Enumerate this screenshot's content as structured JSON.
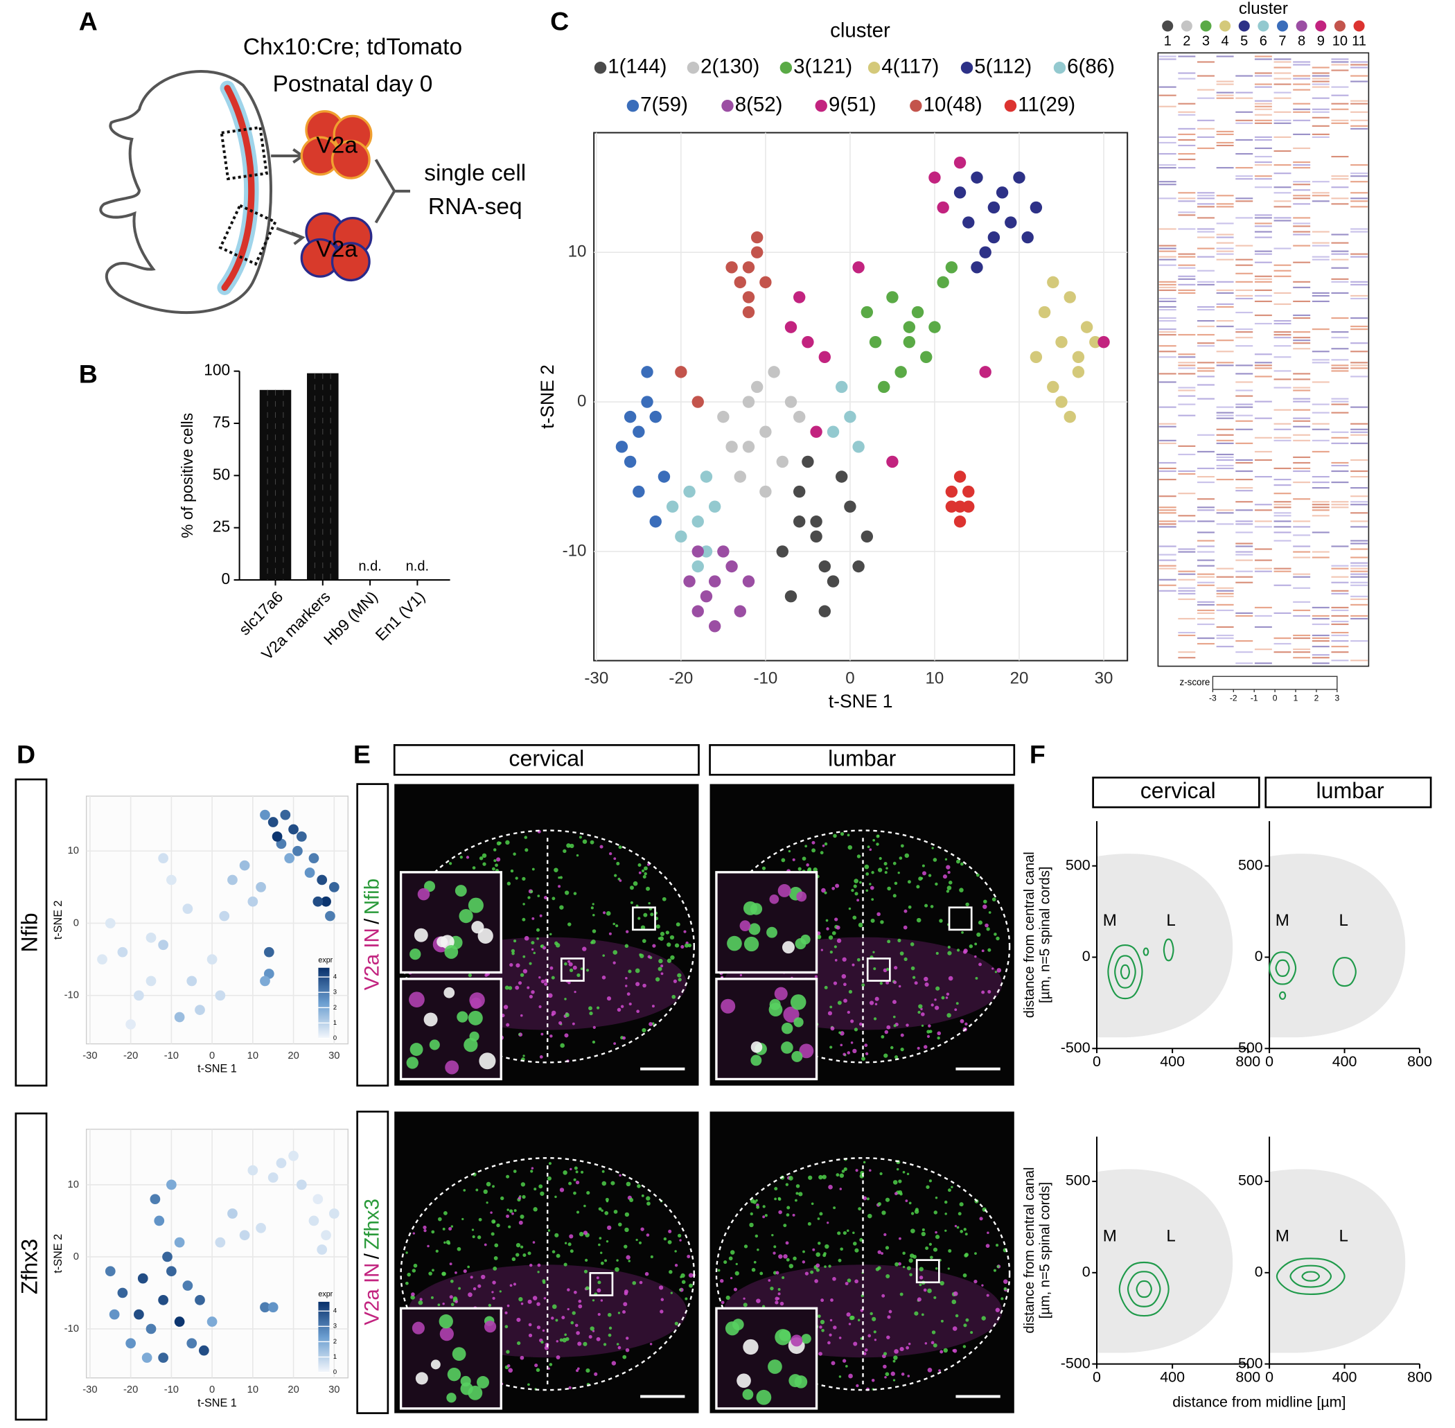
{
  "panel_labels": [
    "A",
    "B",
    "C",
    "D",
    "E",
    "F"
  ],
  "schematic": {
    "title_lines": [
      "Chx10:Cre; tdTomato",
      "Postnatal day 0"
    ],
    "cell_labels": [
      "V2a",
      "V2a"
    ],
    "result_lines": [
      "single cell",
      "RNA-seq"
    ]
  },
  "panel_e": {
    "columns": [
      "cervical",
      "lumbar"
    ],
    "channel": "V2a IN",
    "separator": "/",
    "markers": [
      "Nfib",
      "Zfhx3"
    ]
  },
  "chart_data": [
    {
      "type": "bar",
      "categories": [
        "slc17a6",
        "V2a markers",
        "Hb9 (MN)",
        "En1 (V1)"
      ],
      "values": [
        91,
        99,
        null,
        null
      ],
      "value_labels": [
        null,
        null,
        "n.d.",
        "n.d."
      ],
      "y_label": "% of positive cells",
      "ylim": [
        0,
        100
      ],
      "yticks": [
        0,
        25,
        50,
        75,
        100
      ],
      "color": "#0d0d0d"
    },
    {
      "type": "scatter",
      "legend_title": "cluster",
      "x_label": "t-SNE 1",
      "y_label": "t-SNE 2",
      "xlim": [
        -30.3,
        32.8
      ],
      "ylim": [
        -17.3,
        18
      ],
      "xticks": [
        -30,
        -20,
        -10,
        0,
        10,
        20,
        30
      ],
      "yticks": [
        -10,
        0,
        10
      ],
      "grid": true,
      "series": [
        {
          "name": "1(144)",
          "color": "#4a4a4a",
          "x": [
            -4,
            -6,
            -2,
            -8,
            0,
            -3,
            -5,
            1,
            -7,
            -1,
            -4,
            2,
            -6,
            -3
          ],
          "y": [
            -9,
            -6,
            -12,
            -10,
            -7,
            -14,
            -4,
            -11,
            -13,
            -5,
            -8,
            -9,
            -8,
            -11
          ]
        },
        {
          "name": "2(130)",
          "color": "#c4c4c4",
          "x": [
            -10,
            -12,
            -8,
            -14,
            -11,
            -9,
            -6,
            -13,
            -7,
            -10,
            -15,
            -12
          ],
          "y": [
            -2,
            0,
            -4,
            -3,
            1,
            2,
            -1,
            -5,
            0,
            -6,
            -1,
            -3
          ]
        },
        {
          "name": "3(121)",
          "color": "#5aaa46",
          "x": [
            7,
            5,
            9,
            3,
            11,
            6,
            8,
            4,
            10,
            12,
            2,
            7
          ],
          "y": [
            5,
            7,
            3,
            4,
            8,
            2,
            6,
            1,
            5,
            9,
            6,
            4
          ]
        },
        {
          "name": "4(117)",
          "color": "#d4c97a",
          "x": [
            25,
            23,
            27,
            24,
            26,
            28,
            22,
            25,
            27,
            24,
            29,
            26
          ],
          "y": [
            4,
            6,
            2,
            1,
            7,
            5,
            3,
            0,
            3,
            8,
            4,
            -1
          ]
        },
        {
          "name": "5(112)",
          "color": "#2d3187",
          "x": [
            17,
            15,
            19,
            13,
            21,
            16,
            18,
            14,
            20,
            17,
            22,
            15
          ],
          "y": [
            13,
            15,
            12,
            14,
            11,
            10,
            14,
            12,
            15,
            11,
            13,
            9
          ]
        },
        {
          "name": "6(86)",
          "color": "#93c9cf",
          "x": [
            -18,
            -19,
            -17,
            -20,
            -16,
            -18,
            -21,
            -17,
            0,
            -1,
            1,
            -2
          ],
          "y": [
            -8,
            -6,
            -10,
            -9,
            -7,
            -11,
            -7,
            -5,
            -1,
            1,
            -3,
            -2
          ]
        },
        {
          "name": "7(59)",
          "color": "#3a6dba",
          "x": [
            -25,
            -24,
            -26,
            -23,
            -25,
            -27,
            -24,
            -22,
            -26,
            -23
          ],
          "y": [
            -2,
            0,
            -4,
            -1,
            -6,
            -3,
            2,
            -5,
            -1,
            -8
          ]
        },
        {
          "name": "8(52)",
          "color": "#9b4ea3",
          "x": [
            -16,
            -18,
            -14,
            -17,
            -19,
            -15,
            -13,
            -16,
            -18,
            -12
          ],
          "y": [
            -12,
            -14,
            -11,
            -13,
            -12,
            -10,
            -14,
            -15,
            -10,
            -12
          ]
        },
        {
          "name": "9(51)",
          "color": "#c2237f",
          "x": [
            10,
            11,
            -7,
            -5,
            5,
            30,
            16,
            -6,
            -3,
            13,
            1,
            -4
          ],
          "y": [
            15,
            13,
            5,
            4,
            -4,
            4,
            2,
            7,
            3,
            16,
            9,
            -2
          ]
        },
        {
          "name": "10(48)",
          "color": "#c3544c",
          "x": [
            -12,
            -11,
            -13,
            -12,
            -10,
            -14,
            -11,
            -12,
            -20,
            -18
          ],
          "y": [
            9,
            10,
            8,
            7,
            8,
            9,
            11,
            6,
            2,
            0
          ]
        },
        {
          "name": "11(29)",
          "color": "#dc3330",
          "x": [
            13,
            12,
            14,
            13,
            12,
            14,
            13
          ],
          "y": [
            -7,
            -6,
            -7,
            -8,
            -7,
            -6,
            -5
          ]
        }
      ]
    },
    {
      "type": "heatmap",
      "title": "cluster",
      "categories": [
        "1",
        "2",
        "3",
        "4",
        "5",
        "6",
        "7",
        "8",
        "9",
        "10",
        "11"
      ],
      "colors": [
        "#4a4a4a",
        "#c4c4c4",
        "#5aaa46",
        "#d4c97a",
        "#2d3187",
        "#93c9cf",
        "#3a6dba",
        "#9b4ea3",
        "#c2237f",
        "#c3544c",
        "#dc3330"
      ],
      "colorbar_label": "z-score",
      "colorbar_lim": [
        -3,
        3
      ],
      "colorbar_ticks": [
        -3,
        -2,
        -1,
        0,
        1,
        2,
        3
      ]
    },
    {
      "type": "scatter",
      "title": "Nfib",
      "x_label": "t-SNE 1",
      "y_label": "t-SNE 2",
      "xlim": [
        -30.9,
        33.4
      ],
      "ylim": [
        -16.7,
        17.6
      ],
      "xticks": [
        -30,
        -20,
        -10,
        0,
        10,
        20,
        30
      ],
      "yticks": [
        -10,
        0,
        10
      ],
      "grid": true,
      "colorbar_label": "expr",
      "colorbar_lim": [
        0,
        4.6
      ],
      "colorbar_ticks": [
        0,
        1,
        2,
        3,
        4
      ],
      "x": [
        15,
        18,
        20,
        17,
        13,
        22,
        25,
        27,
        28,
        30,
        26,
        29,
        24,
        19,
        16,
        21,
        5,
        8,
        10,
        3,
        12,
        14,
        14,
        13,
        -12,
        -10,
        -15,
        -22,
        -25,
        -18,
        -5,
        -8,
        0,
        -3,
        -20,
        -12,
        -6,
        2,
        -15,
        -27
      ],
      "y": [
        14,
        15,
        13,
        11,
        15,
        12,
        9,
        6,
        3,
        5,
        3,
        1,
        7,
        9,
        12,
        10,
        6,
        8,
        3,
        1,
        5,
        -4,
        -7,
        -8,
        9,
        6,
        -2,
        -4,
        0,
        -10,
        -8,
        -13,
        -5,
        -12,
        -14,
        -3,
        2,
        -10,
        -8,
        -5
      ],
      "expr": [
        4,
        3.5,
        4,
        3,
        2.5,
        3.5,
        3,
        4,
        4.5,
        3.5,
        4,
        3,
        2.5,
        2,
        4.5,
        3,
        1.2,
        1.5,
        1,
        0.8,
        1.3,
        3.5,
        2.5,
        2,
        0.6,
        0.4,
        0.5,
        0.7,
        0.4,
        0.6,
        0.8,
        1.5,
        0.5,
        0.9,
        0.3,
        1,
        0.6,
        0.7,
        0.5,
        0.4
      ]
    },
    {
      "type": "scatter",
      "title": "Zfhx3",
      "x_label": "t-SNE 1",
      "y_label": "t-SNE 2",
      "xlim": [
        -30.9,
        33.4
      ],
      "ylim": [
        -16.8,
        17.7
      ],
      "xticks": [
        -30,
        -20,
        -10,
        0,
        10,
        20,
        30
      ],
      "yticks": [
        -10,
        0,
        10
      ],
      "grid": true,
      "colorbar_label": "expr",
      "colorbar_lim": [
        0,
        4.6
      ],
      "colorbar_ticks": [
        0,
        1,
        2,
        3,
        4
      ],
      "x": [
        -25,
        -22,
        -18,
        -15,
        -20,
        -12,
        -10,
        -8,
        -5,
        -3,
        0,
        -14,
        -13,
        -10,
        -12,
        -17,
        -6,
        -2,
        -24,
        -8,
        13,
        15,
        -11,
        -16,
        5,
        8,
        12,
        10,
        17,
        20,
        25,
        28,
        26,
        22,
        15,
        2,
        30,
        27
      ],
      "y": [
        -2,
        -5,
        -8,
        -10,
        -12,
        -6,
        -2,
        -9,
        -12,
        -6,
        -9,
        8,
        5,
        10,
        -14,
        -3,
        -4,
        -13,
        -8,
        2,
        -7,
        -7,
        0,
        -14,
        6,
        3,
        4,
        12,
        13,
        14,
        5,
        3,
        8,
        10,
        11,
        2,
        6,
        1
      ],
      "expr": [
        3,
        3.5,
        4,
        3,
        2.5,
        4,
        3.5,
        4.5,
        3,
        3.5,
        2,
        3,
        2.5,
        2,
        3.5,
        4,
        3,
        4,
        2.5,
        2,
        3,
        2.5,
        3.5,
        2,
        1,
        0.8,
        0.6,
        0.5,
        0.6,
        0.4,
        0.5,
        0.4,
        0.3,
        0.7,
        0.6,
        0.7,
        0.5,
        0.6
      ]
    },
    {
      "type": "contour",
      "title": "cervical",
      "y_label": [
        "distance from central canal",
        "[µm, n=5 spinal cords]"
      ],
      "annotations": [
        "M",
        "L"
      ],
      "color": "#1f9a4a",
      "xlim": [
        0,
        800
      ],
      "ylim": [
        -500,
        745
      ],
      "xticks": [
        0,
        400,
        800
      ],
      "yticks": [
        -500,
        0,
        500
      ],
      "contours": [
        {
          "x": [
            240,
            195,
            105,
            60,
            105,
            195
          ],
          "y": [
            -80,
            50,
            50,
            -80,
            -210,
            -210
          ]
        },
        {
          "x": [
            204,
            177,
            123,
            96,
            123,
            177
          ],
          "y": [
            -80,
            -2,
            -2,
            -80,
            -158,
            -158
          ]
        },
        {
          "x": [
            172,
            161,
            139,
            128,
            139,
            161
          ],
          "y": [
            -80,
            -47,
            -47,
            -80,
            -113,
            -113
          ]
        },
        {
          "x": [
            405,
            392,
            368,
            355,
            368,
            392
          ],
          "y": [
            40,
            92,
            92,
            40,
            -12,
            -12
          ]
        },
        {
          "x": [
            272,
            266,
            254,
            248,
            254,
            266
          ],
          "y": [
            30,
            47,
            47,
            30,
            13,
            13
          ]
        }
      ]
    },
    {
      "type": "contour",
      "title": "lumbar",
      "annotations": [
        "M",
        "L"
      ],
      "color": "#1f9a4a",
      "xlim": [
        0,
        800
      ],
      "ylim": [
        -500,
        745
      ],
      "xticks": [
        0,
        400,
        800
      ],
      "yticks": [
        -500,
        0,
        500
      ],
      "contours": [
        {
          "x": [
            140,
            105,
            35,
            0,
            35,
            105
          ],
          "y": [
            -60,
            18,
            18,
            -60,
            -138,
            -138
          ]
        },
        {
          "x": [
            105,
            88,
            53,
            35,
            53,
            88
          ],
          "y": [
            -60,
            -21,
            -21,
            -60,
            -99,
            -99
          ]
        },
        {
          "x": [
            460,
            430,
            370,
            340,
            370,
            430
          ],
          "y": [
            -80,
            -11,
            -11,
            -80,
            -149,
            -149
          ]
        },
        {
          "x": [
            85,
            78,
            63,
            55,
            63,
            78
          ],
          "y": [
            -210,
            -193,
            -193,
            -210,
            -227,
            -227
          ]
        }
      ]
    },
    {
      "type": "contour",
      "y_label": [
        "distance from central canal",
        "[µm, n=5 spinal cords]"
      ],
      "x_label": "distance from midline [µm]",
      "annotations": [
        "M",
        "L"
      ],
      "color": "#1f9a4a",
      "xlim": [
        0,
        800
      ],
      "ylim": [
        -500,
        745
      ],
      "xticks": [
        0,
        400,
        800
      ],
      "yticks": [
        -500,
        0,
        500
      ],
      "contours": [
        {
          "x": [
            380,
            315,
            185,
            120,
            185,
            315
          ],
          "y": [
            -90,
            40,
            40,
            -90,
            -220,
            -220
          ]
        },
        {
          "x": [
            335,
            292,
            208,
            165,
            208,
            292
          ],
          "y": [
            -90,
            -5,
            -5,
            -90,
            -175,
            -175
          ]
        },
        {
          "x": [
            289,
            270,
            231,
            211,
            231,
            270
          ],
          "y": [
            -90,
            -51,
            -51,
            -90,
            -129,
            -129
          ]
        }
      ]
    },
    {
      "type": "contour",
      "annotations": [
        "M",
        "L"
      ],
      "color": "#1f9a4a",
      "xlim": [
        0,
        800
      ],
      "ylim": [
        -500,
        745
      ],
      "xticks": [
        0,
        400,
        800
      ],
      "yticks": [
        -500,
        0,
        500
      ],
      "contours": [
        {
          "x": [
            400,
            310,
            130,
            40,
            130,
            310
          ],
          "y": [
            -20,
            67,
            67,
            -20,
            -107,
            -107
          ]
        },
        {
          "x": [
            328,
            274,
            166,
            112,
            166,
            274
          ],
          "y": [
            -20,
            32,
            32,
            -20,
            -72,
            -72
          ]
        },
        {
          "x": [
            265,
            243,
            198,
            175,
            198,
            243
          ],
          "y": [
            -20,
            2,
            2,
            -20,
            -42,
            -42
          ]
        }
      ]
    }
  ]
}
